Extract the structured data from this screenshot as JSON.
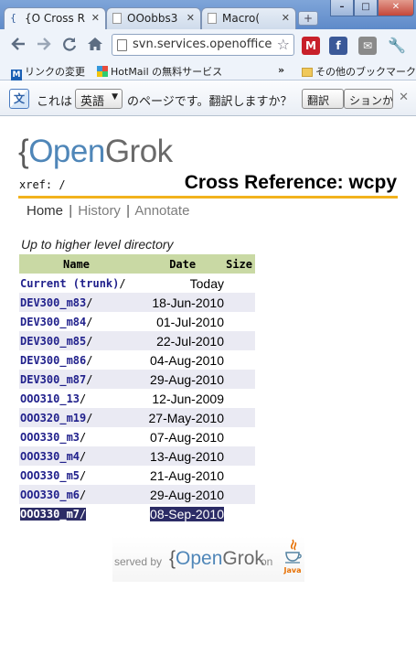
{
  "browser": {
    "tabs": [
      {
        "title": "{O Cross R",
        "icon": "opengrok-favicon"
      },
      {
        "title": "OOobbs3",
        "icon": "page-icon"
      },
      {
        "title": "Macro(",
        "icon": "page-icon"
      }
    ],
    "url": "svn.services.openoffice",
    "bookmarks": [
      {
        "label": "リンクの変更",
        "icon": "msn-icon"
      },
      {
        "label": "HotMail の無料サービス",
        "icon": "windows-icon"
      }
    ],
    "bookmarks_overflow": "»",
    "other_bookmarks": "その他のブックマーク",
    "translate_bar": {
      "prefix": "これは",
      "language": "英語",
      "question": "のページです。翻訳しますか？",
      "translate_button": "翻訳",
      "options_button": "ションかえ"
    }
  },
  "page": {
    "logo": {
      "brace": "{",
      "open": "Open",
      "grok": "Grok"
    },
    "xref": "xref: /",
    "heading": "Cross Reference: wcpy",
    "nav": {
      "home": "Home",
      "history": "History",
      "annotate": "Annotate",
      "sep": "|"
    },
    "up_link": "Up to higher level directory",
    "table": {
      "headers": [
        "Name",
        "Date",
        "Size"
      ],
      "rows": [
        {
          "name": "Current (trunk)",
          "date": "Today"
        },
        {
          "name": "DEV300_m83",
          "date": "18-Jun-2010"
        },
        {
          "name": "DEV300_m84",
          "date": "01-Jul-2010"
        },
        {
          "name": "DEV300_m85",
          "date": "22-Jul-2010"
        },
        {
          "name": "DEV300_m86",
          "date": "04-Aug-2010"
        },
        {
          "name": "DEV300_m87",
          "date": "29-Aug-2010"
        },
        {
          "name": "OOO310_13",
          "date": "12-Jun-2009"
        },
        {
          "name": "OOO320_m19",
          "date": "27-May-2010"
        },
        {
          "name": "OOO330_m3",
          "date": "07-Aug-2010"
        },
        {
          "name": "OOO330_m4",
          "date": "13-Aug-2010"
        },
        {
          "name": "OOO330_m5",
          "date": "21-Aug-2010"
        },
        {
          "name": "OOO330_m6",
          "date": "29-Aug-2010"
        },
        {
          "name": "OOO330_m7",
          "date": "08-Sep-2010"
        }
      ]
    },
    "footer": {
      "served_by": "served by",
      "brand_brace": "{",
      "brand_open": "Open",
      "brand_grok": "Grok",
      "on": "on",
      "java": "Java"
    }
  }
}
